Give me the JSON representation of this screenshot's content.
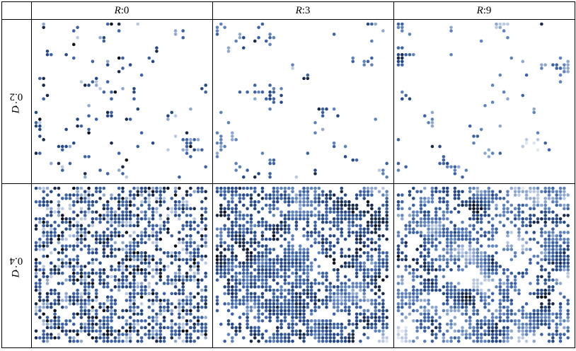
{
  "table": {
    "corner": "",
    "column_headers": [
      {
        "var": "R",
        "sep": ":",
        "value": "0"
      },
      {
        "var": "R",
        "sep": ":",
        "value": "3"
      },
      {
        "var": "R",
        "sep": ":",
        "value": "9"
      }
    ],
    "row_headers": [
      {
        "var": "D",
        "sep": ":",
        "value": "0.2"
      },
      {
        "var": "D",
        "sep": ":",
        "value": "0.4"
      }
    ]
  },
  "panels": [
    {
      "row": 0,
      "col": 0,
      "density": 0.2,
      "radius": 0
    },
    {
      "row": 0,
      "col": 1,
      "density": 0.2,
      "radius": 3
    },
    {
      "row": 0,
      "col": 2,
      "density": 0.2,
      "radius": 9
    },
    {
      "row": 1,
      "col": 0,
      "density": 0.4,
      "radius": 0
    },
    {
      "row": 1,
      "col": 1,
      "density": 0.4,
      "radius": 3
    },
    {
      "row": 1,
      "col": 2,
      "density": 0.4,
      "radius": 9
    }
  ],
  "colors": {
    "border": "#000000",
    "dot_palette": [
      "#dde5f0",
      "#b9c9e2",
      "#8ea8d0",
      "#5f83bd",
      "#3c63a6",
      "#274a87",
      "#1a2b4a",
      "#0e121a"
    ]
  }
}
